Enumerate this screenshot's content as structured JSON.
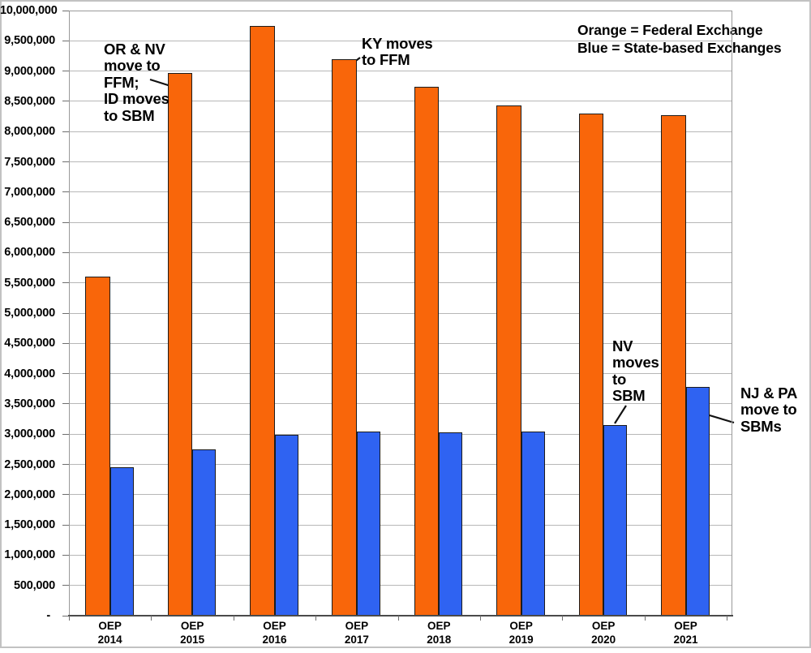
{
  "chart_data": {
    "type": "bar",
    "title": "",
    "categories": [
      {
        "line1": "OEP",
        "line2": "2014"
      },
      {
        "line1": "OEP",
        "line2": "2015"
      },
      {
        "line1": "OEP",
        "line2": "2016"
      },
      {
        "line1": "OEP",
        "line2": "2017"
      },
      {
        "line1": "OEP",
        "line2": "2018"
      },
      {
        "line1": "OEP",
        "line2": "2019"
      },
      {
        "line1": "OEP",
        "line2": "2020"
      },
      {
        "line1": "OEP",
        "line2": "2021"
      }
    ],
    "series": [
      {
        "name": "Federal Exchange",
        "color_key": "orange",
        "values": [
          5600000,
          8970000,
          9740000,
          9200000,
          8740000,
          8430000,
          8300000,
          8270000
        ]
      },
      {
        "name": "State-based Exchanges",
        "color_key": "blue",
        "values": [
          2450000,
          2750000,
          2990000,
          3040000,
          3030000,
          3040000,
          3150000,
          3780000
        ]
      }
    ],
    "ylim": [
      0,
      10000000
    ],
    "ytick_step": 500000,
    "zero_tick_label": "-",
    "grid": true,
    "legend_lines": [
      "Orange = Federal Exchange",
      "Blue = State-based Exchanges"
    ],
    "colors": {
      "orange": "#f9660a",
      "blue": "#2f63f2"
    },
    "annotations": [
      {
        "id": "or-nv",
        "text": "OR & NV\nmove to\nFFM;\nID moves\nto SBM"
      },
      {
        "id": "ky",
        "text": "KY moves\nto FFM"
      },
      {
        "id": "nv",
        "text": "NV\nmoves\nto\nSBM"
      },
      {
        "id": "nj-pa",
        "text": "NJ & PA\nmove to\nSBMs"
      }
    ]
  }
}
